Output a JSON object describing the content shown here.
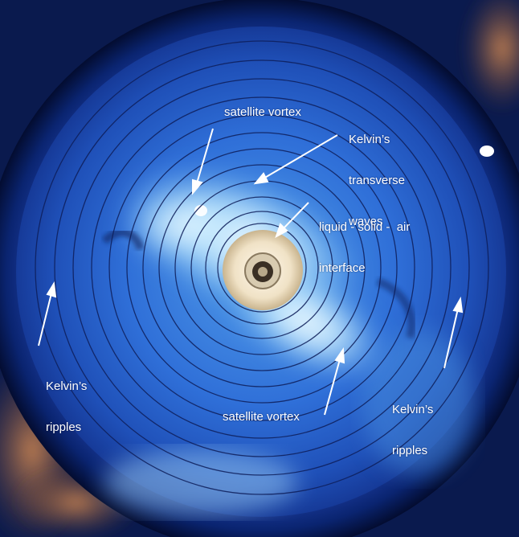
{
  "labels": {
    "satellite_vortex_top": "satellite vortex",
    "kelvin_transverse_line1": "Kelvin’s",
    "kelvin_transverse_line2": "transverse",
    "kelvin_transverse_line3": "waves",
    "interface_line1": "liquid - solid -  air",
    "interface_line2": "interface",
    "kelvin_ripples_left_line1": "Kelvin’s",
    "kelvin_ripples_left_line2": "ripples",
    "kelvin_ripples_right_line1": "Kelvin’s",
    "kelvin_ripples_right_line2": "ripples",
    "satellite_vortex_bottom": "satellite vortex"
  },
  "colors": {
    "water_deep": "#1a3fa8",
    "water_mid": "#2f6fd8",
    "water_light": "#5aa9f0",
    "satellite_vortex_glow": "#c8ecff",
    "rim_dark": "#061848",
    "rust_stain": "#b0744a",
    "label_text": "#ffffff",
    "wave_circle": "#0e1e5a"
  }
}
